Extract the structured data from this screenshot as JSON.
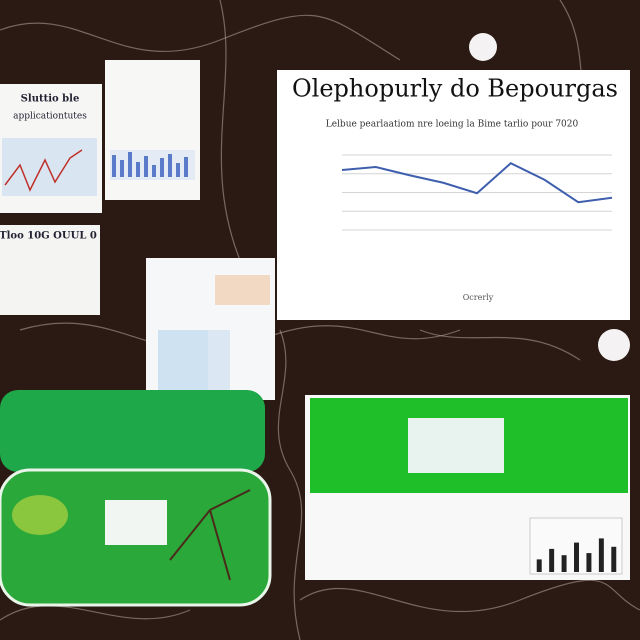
{
  "panels": {
    "main": {
      "title": "Olephopurly do Bepourgas",
      "subtitle": "Lelbue pearlaatiom nre loeing la Bime tarlio pour 7020",
      "x_label": "Ocrerly"
    },
    "left_top": {
      "title": "Sluttio ble",
      "subtitle": "applicationtutes"
    },
    "left_mid": {
      "title": "Tloo 10G OUUL 0"
    }
  },
  "chart_data": {
    "type": "line",
    "values": [
      80,
      84,
      73,
      63,
      49,
      89,
      67,
      37,
      43
    ],
    "ylim": [
      0,
      100
    ],
    "yticks": [
      0,
      25,
      50,
      75,
      100
    ],
    "grid": true,
    "color": "#3f5fae"
  },
  "mini_bars": {
    "type": "bar",
    "values": [
      30,
      55,
      40,
      70,
      45,
      80,
      60
    ],
    "ylim": [
      0,
      100
    ],
    "color": "#222222"
  }
}
